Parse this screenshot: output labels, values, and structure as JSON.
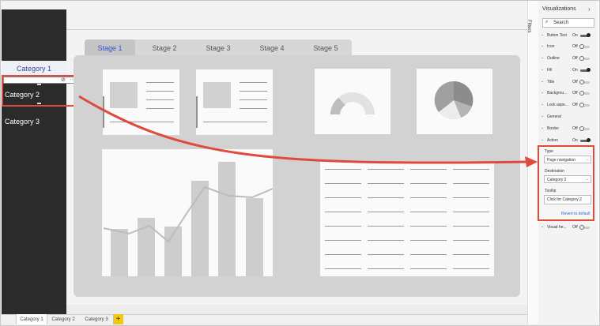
{
  "categories": [
    "Category 1",
    "Category 2",
    "Category 3"
  ],
  "stage_tabs": [
    "Stage 1",
    "Stage 2",
    "Stage 3",
    "Stage 4",
    "Stage 5"
  ],
  "bottom_tabs": [
    "Category 1",
    "Category 2",
    "Category 3"
  ],
  "add_tab": "+",
  "visual_toolbar": {
    "filter_icon": "⊘",
    "more_icon": "···"
  },
  "filters_label": "Filters",
  "viz": {
    "title": "Visualizations",
    "collapse": "›",
    "search_placeholder": "Search",
    "search_icon": "⌕",
    "properties": [
      {
        "label": "Button Text",
        "value": "On",
        "state": "on"
      },
      {
        "label": "Icon",
        "value": "Off",
        "state": "off"
      },
      {
        "label": "Outline",
        "value": "Off",
        "state": "off"
      },
      {
        "label": "Fill",
        "value": "On",
        "state": "on"
      },
      {
        "label": "Title",
        "value": "Off",
        "state": "off"
      },
      {
        "label": "Backgrou...",
        "value": "Off",
        "state": "off"
      },
      {
        "label": "Lock aspe...",
        "value": "Off",
        "state": "off"
      },
      {
        "label": "General",
        "value": "",
        "state": ""
      },
      {
        "label": "Border",
        "value": "Off",
        "state": "off"
      },
      {
        "label": "Action",
        "value": "On",
        "state": "on"
      }
    ],
    "action": {
      "type_label": "Type",
      "type_value": "Page navigation",
      "destination_label": "Destination",
      "destination_value": "Category 2",
      "tooltip_label": "Tooltip",
      "tooltip_value": "Click for Category 2",
      "revert_label": "Revert to default"
    },
    "visual_header": {
      "label": "Visual he...",
      "value": "Off",
      "state": "off"
    }
  },
  "colors": {
    "accent_red": "#e04a3d",
    "selected_text": "#3b4aa8",
    "stage_active": "#3a50c8",
    "tab_add": "#f2c811"
  }
}
